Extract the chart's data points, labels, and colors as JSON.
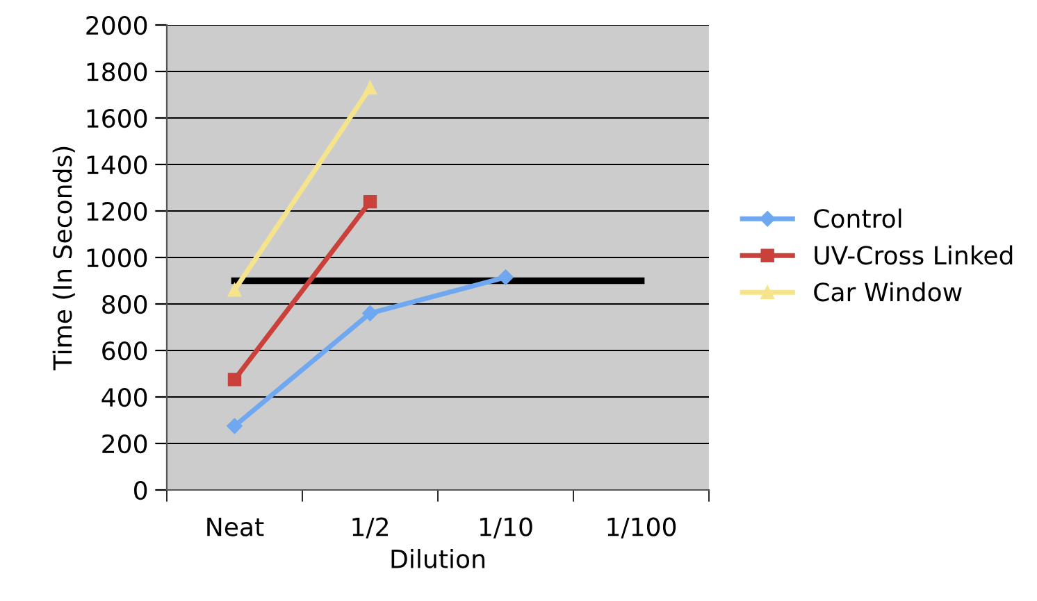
{
  "chart_data": {
    "type": "line",
    "xlabel": "Dilution",
    "ylabel": "Time (In Seconds)",
    "categories": [
      "Neat",
      "1/2",
      "1/10",
      "1/100"
    ],
    "series": [
      {
        "name": "Control",
        "color": "#6fa8f0",
        "values": [
          275,
          760,
          915,
          null
        ],
        "marker": "diamond"
      },
      {
        "name": "UV-Cross Linked",
        "color": "#c9413a",
        "values": [
          475,
          1240,
          null,
          null
        ],
        "marker": "square"
      },
      {
        "name": "Car Window",
        "color": "#f5e48c",
        "values": [
          860,
          1730,
          null,
          null
        ],
        "marker": "triangle"
      },
      {
        "color": "#000000",
        "values": [
          900,
          900,
          900,
          900
        ],
        "marker": "none"
      }
    ],
    "ylim": [
      0,
      2000
    ],
    "yticks": [
      0,
      200,
      400,
      600,
      800,
      1000,
      1200,
      1400,
      1600,
      1800,
      2000
    ],
    "grid": "y",
    "legend": "right",
    "line_style": "solid"
  }
}
